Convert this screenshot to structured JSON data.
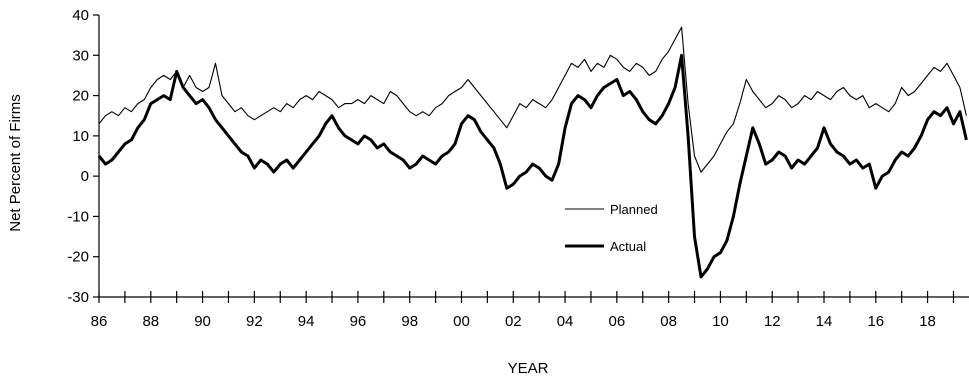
{
  "chart_data": {
    "type": "line",
    "xlabel": "YEAR",
    "ylabel": "Net Percent of Firms",
    "ylim": [
      -30,
      40
    ],
    "xlim": [
      1986,
      2019.6
    ],
    "y_ticks": [
      -30,
      -20,
      -10,
      0,
      10,
      20,
      30,
      40
    ],
    "x_ticks": [
      {
        "value": 1986,
        "label": "86"
      },
      {
        "value": 1988,
        "label": "88"
      },
      {
        "value": 1990,
        "label": "90"
      },
      {
        "value": 1992,
        "label": "92"
      },
      {
        "value": 1994,
        "label": "94"
      },
      {
        "value": 1996,
        "label": "96"
      },
      {
        "value": 1998,
        "label": "98"
      },
      {
        "value": 2000,
        "label": "00"
      },
      {
        "value": 2002,
        "label": "02"
      },
      {
        "value": 2004,
        "label": "04"
      },
      {
        "value": 2006,
        "label": "06"
      },
      {
        "value": 2008,
        "label": "08"
      },
      {
        "value": 2010,
        "label": "10"
      },
      {
        "value": 2012,
        "label": "12"
      },
      {
        "value": 2014,
        "label": "14"
      },
      {
        "value": 2016,
        "label": "16"
      },
      {
        "value": 2018,
        "label": "18"
      }
    ],
    "legend": "inside, lower-middle",
    "grid": false,
    "series": [
      {
        "name": "Planned",
        "style": "thin",
        "color": "#000000",
        "points": [
          [
            1986.0,
            13
          ],
          [
            1986.25,
            15
          ],
          [
            1986.5,
            16
          ],
          [
            1986.75,
            15
          ],
          [
            1987.0,
            17
          ],
          [
            1987.25,
            16
          ],
          [
            1987.5,
            18
          ],
          [
            1987.75,
            19
          ],
          [
            1988.0,
            22
          ],
          [
            1988.25,
            24
          ],
          [
            1988.5,
            25
          ],
          [
            1988.75,
            24
          ],
          [
            1989.0,
            26
          ],
          [
            1989.25,
            22
          ],
          [
            1989.5,
            25
          ],
          [
            1989.75,
            22
          ],
          [
            1990.0,
            21
          ],
          [
            1990.25,
            22
          ],
          [
            1990.5,
            28
          ],
          [
            1990.75,
            20
          ],
          [
            1991.0,
            18
          ],
          [
            1991.25,
            16
          ],
          [
            1991.5,
            17
          ],
          [
            1991.75,
            15
          ],
          [
            1992.0,
            14
          ],
          [
            1992.25,
            15
          ],
          [
            1992.5,
            16
          ],
          [
            1992.75,
            17
          ],
          [
            1993.0,
            16
          ],
          [
            1993.25,
            18
          ],
          [
            1993.5,
            17
          ],
          [
            1993.75,
            19
          ],
          [
            1994.0,
            20
          ],
          [
            1994.25,
            19
          ],
          [
            1994.5,
            21
          ],
          [
            1994.75,
            20
          ],
          [
            1995.0,
            19
          ],
          [
            1995.25,
            17
          ],
          [
            1995.5,
            18
          ],
          [
            1995.75,
            18
          ],
          [
            1996.0,
            19
          ],
          [
            1996.25,
            18
          ],
          [
            1996.5,
            20
          ],
          [
            1996.75,
            19
          ],
          [
            1997.0,
            18
          ],
          [
            1997.25,
            21
          ],
          [
            1997.5,
            20
          ],
          [
            1997.75,
            18
          ],
          [
            1998.0,
            16
          ],
          [
            1998.25,
            15
          ],
          [
            1998.5,
            16
          ],
          [
            1998.75,
            15
          ],
          [
            1999.0,
            17
          ],
          [
            1999.25,
            18
          ],
          [
            1999.5,
            20
          ],
          [
            1999.75,
            21
          ],
          [
            2000.0,
            22
          ],
          [
            2000.25,
            24
          ],
          [
            2000.5,
            22
          ],
          [
            2000.75,
            20
          ],
          [
            2001.0,
            18
          ],
          [
            2001.25,
            16
          ],
          [
            2001.5,
            14
          ],
          [
            2001.75,
            12
          ],
          [
            2002.0,
            15
          ],
          [
            2002.25,
            18
          ],
          [
            2002.5,
            17
          ],
          [
            2002.75,
            19
          ],
          [
            2003.0,
            18
          ],
          [
            2003.25,
            17
          ],
          [
            2003.5,
            19
          ],
          [
            2003.75,
            22
          ],
          [
            2004.0,
            25
          ],
          [
            2004.25,
            28
          ],
          [
            2004.5,
            27
          ],
          [
            2004.75,
            29
          ],
          [
            2005.0,
            26
          ],
          [
            2005.25,
            28
          ],
          [
            2005.5,
            27
          ],
          [
            2005.75,
            30
          ],
          [
            2006.0,
            29
          ],
          [
            2006.25,
            27
          ],
          [
            2006.5,
            26
          ],
          [
            2006.75,
            28
          ],
          [
            2007.0,
            27
          ],
          [
            2007.25,
            25
          ],
          [
            2007.5,
            26
          ],
          [
            2007.75,
            29
          ],
          [
            2008.0,
            31
          ],
          [
            2008.25,
            34
          ],
          [
            2008.5,
            37
          ],
          [
            2008.75,
            18
          ],
          [
            2009.0,
            5
          ],
          [
            2009.25,
            1
          ],
          [
            2009.5,
            3
          ],
          [
            2009.75,
            5
          ],
          [
            2010.0,
            8
          ],
          [
            2010.25,
            11
          ],
          [
            2010.5,
            13
          ],
          [
            2010.75,
            18
          ],
          [
            2011.0,
            24
          ],
          [
            2011.25,
            21
          ],
          [
            2011.5,
            19
          ],
          [
            2011.75,
            17
          ],
          [
            2012.0,
            18
          ],
          [
            2012.25,
            20
          ],
          [
            2012.5,
            19
          ],
          [
            2012.75,
            17
          ],
          [
            2013.0,
            18
          ],
          [
            2013.25,
            20
          ],
          [
            2013.5,
            19
          ],
          [
            2013.75,
            21
          ],
          [
            2014.0,
            20
          ],
          [
            2014.25,
            19
          ],
          [
            2014.5,
            21
          ],
          [
            2014.75,
            22
          ],
          [
            2015.0,
            20
          ],
          [
            2015.25,
            19
          ],
          [
            2015.5,
            20
          ],
          [
            2015.75,
            17
          ],
          [
            2016.0,
            18
          ],
          [
            2016.25,
            17
          ],
          [
            2016.5,
            16
          ],
          [
            2016.75,
            18
          ],
          [
            2017.0,
            22
          ],
          [
            2017.25,
            20
          ],
          [
            2017.5,
            21
          ],
          [
            2017.75,
            23
          ],
          [
            2018.0,
            25
          ],
          [
            2018.25,
            27
          ],
          [
            2018.5,
            26
          ],
          [
            2018.75,
            28
          ],
          [
            2019.0,
            25
          ],
          [
            2019.25,
            22
          ],
          [
            2019.5,
            15
          ]
        ]
      },
      {
        "name": "Actual",
        "style": "thick",
        "color": "#000000",
        "points": [
          [
            1986.0,
            5
          ],
          [
            1986.25,
            3
          ],
          [
            1986.5,
            4
          ],
          [
            1986.75,
            6
          ],
          [
            1987.0,
            8
          ],
          [
            1987.25,
            9
          ],
          [
            1987.5,
            12
          ],
          [
            1987.75,
            14
          ],
          [
            1988.0,
            18
          ],
          [
            1988.25,
            19
          ],
          [
            1988.5,
            20
          ],
          [
            1988.75,
            19
          ],
          [
            1989.0,
            26
          ],
          [
            1989.25,
            22
          ],
          [
            1989.5,
            20
          ],
          [
            1989.75,
            18
          ],
          [
            1990.0,
            19
          ],
          [
            1990.25,
            17
          ],
          [
            1990.5,
            14
          ],
          [
            1990.75,
            12
          ],
          [
            1991.0,
            10
          ],
          [
            1991.25,
            8
          ],
          [
            1991.5,
            6
          ],
          [
            1991.75,
            5
          ],
          [
            1992.0,
            2
          ],
          [
            1992.25,
            4
          ],
          [
            1992.5,
            3
          ],
          [
            1992.75,
            1
          ],
          [
            1993.0,
            3
          ],
          [
            1993.25,
            4
          ],
          [
            1993.5,
            2
          ],
          [
            1993.75,
            4
          ],
          [
            1994.0,
            6
          ],
          [
            1994.25,
            8
          ],
          [
            1994.5,
            10
          ],
          [
            1994.75,
            13
          ],
          [
            1995.0,
            15
          ],
          [
            1995.25,
            12
          ],
          [
            1995.5,
            10
          ],
          [
            1995.75,
            9
          ],
          [
            1996.0,
            8
          ],
          [
            1996.25,
            10
          ],
          [
            1996.5,
            9
          ],
          [
            1996.75,
            7
          ],
          [
            1997.0,
            8
          ],
          [
            1997.25,
            6
          ],
          [
            1997.5,
            5
          ],
          [
            1997.75,
            4
          ],
          [
            1998.0,
            2
          ],
          [
            1998.25,
            3
          ],
          [
            1998.5,
            5
          ],
          [
            1998.75,
            4
          ],
          [
            1999.0,
            3
          ],
          [
            1999.25,
            5
          ],
          [
            1999.5,
            6
          ],
          [
            1999.75,
            8
          ],
          [
            2000.0,
            13
          ],
          [
            2000.25,
            15
          ],
          [
            2000.5,
            14
          ],
          [
            2000.75,
            11
          ],
          [
            2001.0,
            9
          ],
          [
            2001.25,
            7
          ],
          [
            2001.5,
            3
          ],
          [
            2001.75,
            -3
          ],
          [
            2002.0,
            -2
          ],
          [
            2002.25,
            0
          ],
          [
            2002.5,
            1
          ],
          [
            2002.75,
            3
          ],
          [
            2003.0,
            2
          ],
          [
            2003.25,
            0
          ],
          [
            2003.5,
            -1
          ],
          [
            2003.75,
            3
          ],
          [
            2004.0,
            12
          ],
          [
            2004.25,
            18
          ],
          [
            2004.5,
            20
          ],
          [
            2004.75,
            19
          ],
          [
            2005.0,
            17
          ],
          [
            2005.25,
            20
          ],
          [
            2005.5,
            22
          ],
          [
            2005.75,
            23
          ],
          [
            2006.0,
            24
          ],
          [
            2006.25,
            20
          ],
          [
            2006.5,
            21
          ],
          [
            2006.75,
            19
          ],
          [
            2007.0,
            16
          ],
          [
            2007.25,
            14
          ],
          [
            2007.5,
            13
          ],
          [
            2007.75,
            15
          ],
          [
            2008.0,
            18
          ],
          [
            2008.25,
            22
          ],
          [
            2008.5,
            30
          ],
          [
            2008.75,
            10
          ],
          [
            2009.0,
            -15
          ],
          [
            2009.25,
            -25
          ],
          [
            2009.5,
            -23
          ],
          [
            2009.75,
            -20
          ],
          [
            2010.0,
            -19
          ],
          [
            2010.25,
            -16
          ],
          [
            2010.5,
            -10
          ],
          [
            2010.75,
            -2
          ],
          [
            2011.0,
            5
          ],
          [
            2011.25,
            12
          ],
          [
            2011.5,
            8
          ],
          [
            2011.75,
            3
          ],
          [
            2012.0,
            4
          ],
          [
            2012.25,
            6
          ],
          [
            2012.5,
            5
          ],
          [
            2012.75,
            2
          ],
          [
            2013.0,
            4
          ],
          [
            2013.25,
            3
          ],
          [
            2013.5,
            5
          ],
          [
            2013.75,
            7
          ],
          [
            2014.0,
            12
          ],
          [
            2014.25,
            8
          ],
          [
            2014.5,
            6
          ],
          [
            2014.75,
            5
          ],
          [
            2015.0,
            3
          ],
          [
            2015.25,
            4
          ],
          [
            2015.5,
            2
          ],
          [
            2015.75,
            3
          ],
          [
            2016.0,
            -3
          ],
          [
            2016.25,
            0
          ],
          [
            2016.5,
            1
          ],
          [
            2016.75,
            4
          ],
          [
            2017.0,
            6
          ],
          [
            2017.25,
            5
          ],
          [
            2017.5,
            7
          ],
          [
            2017.75,
            10
          ],
          [
            2018.0,
            14
          ],
          [
            2018.25,
            16
          ],
          [
            2018.5,
            15
          ],
          [
            2018.75,
            17
          ],
          [
            2019.0,
            13
          ],
          [
            2019.25,
            16
          ],
          [
            2019.5,
            9
          ]
        ]
      }
    ]
  }
}
